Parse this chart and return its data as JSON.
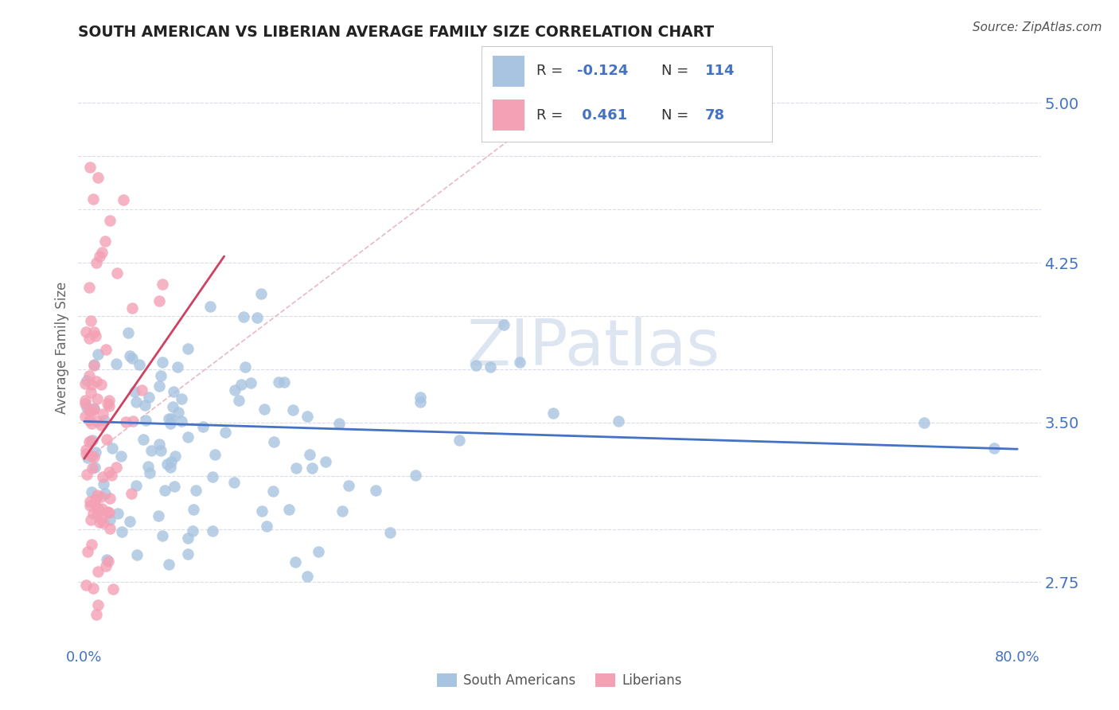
{
  "title": "SOUTH AMERICAN VS LIBERIAN AVERAGE FAMILY SIZE CORRELATION CHART",
  "source": "Source: ZipAtlas.com",
  "ylabel": "Average Family Size",
  "ymin": 2.45,
  "ymax": 5.25,
  "xmin": -0.005,
  "xmax": 0.82,
  "r_sa": -0.124,
  "n_sa": 114,
  "r_lib": 0.461,
  "n_lib": 78,
  "sa_color": "#a8c4e0",
  "lib_color": "#f4a0b5",
  "trendline_sa_color": "#4472c4",
  "trendline_lib_color": "#d04060",
  "dashed_line_color": "#e8b0c0",
  "background_color": "#ffffff",
  "grid_color": "#d8dce8",
  "title_color": "#222222",
  "axis_color": "#4472c4",
  "watermark_color": "#dde6f0"
}
